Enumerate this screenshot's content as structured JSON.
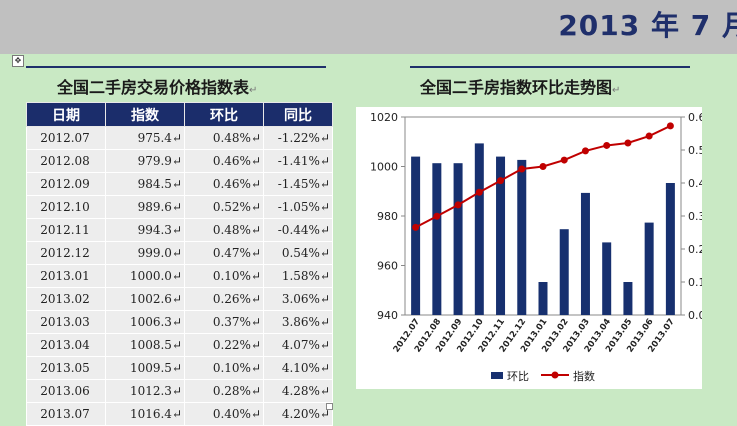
{
  "header": {
    "banner": "2013 年 7 月"
  },
  "table_section": {
    "title": "全国二手房交易价格指数表",
    "columns": [
      "日期",
      "指数",
      "环比",
      "同比"
    ],
    "rows": [
      [
        "2012.07",
        "975.4",
        "0.48%",
        "-1.22%"
      ],
      [
        "2012.08",
        "979.9",
        "0.46%",
        "-1.41%"
      ],
      [
        "2012.09",
        "984.5",
        "0.46%",
        "-1.45%"
      ],
      [
        "2012.10",
        "989.6",
        "0.52%",
        "-1.05%"
      ],
      [
        "2012.11",
        "994.3",
        "0.48%",
        "-0.44%"
      ],
      [
        "2012.12",
        "999.0",
        "0.47%",
        "0.54%"
      ],
      [
        "2013.01",
        "1000.0",
        "0.10%",
        "1.58%"
      ],
      [
        "2013.02",
        "1002.6",
        "0.26%",
        "3.06%"
      ],
      [
        "2013.03",
        "1006.3",
        "0.37%",
        "3.86%"
      ],
      [
        "2013.04",
        "1008.5",
        "0.22%",
        "4.07%"
      ],
      [
        "2013.05",
        "1009.5",
        "0.10%",
        "4.10%"
      ],
      [
        "2013.06",
        "1012.3",
        "0.28%",
        "4.28%"
      ],
      [
        "2013.07",
        "1016.4",
        "0.40%",
        "4.20%"
      ]
    ]
  },
  "chart_section": {
    "title": "全国二手房指数环比走势图"
  },
  "colors": {
    "bar": "#17306f",
    "line": "#c00000",
    "header_bg": "#1b2d6b",
    "page_bg": "#c9e9c4"
  },
  "chart_data": {
    "type": "bar",
    "categories": [
      "2012.07",
      "2012.08",
      "2012.09",
      "2012.10",
      "2012.11",
      "2012.12",
      "2013.01",
      "2013.02",
      "2013.03",
      "2013.04",
      "2013.05",
      "2013.06",
      "2013.07"
    ],
    "series": [
      {
        "name": "环比",
        "type": "bar",
        "axis": "right",
        "values": [
          0.48,
          0.46,
          0.46,
          0.52,
          0.48,
          0.47,
          0.1,
          0.26,
          0.37,
          0.22,
          0.1,
          0.28,
          0.4
        ]
      },
      {
        "name": "指数",
        "type": "line",
        "axis": "left",
        "values": [
          975.4,
          979.9,
          984.5,
          989.6,
          994.3,
          999.0,
          1000.0,
          1002.6,
          1006.3,
          1008.5,
          1009.5,
          1012.3,
          1016.4
        ]
      }
    ],
    "y_left": {
      "ylim": [
        940,
        1020
      ],
      "ticks": [
        "940",
        "960",
        "980",
        "1000",
        "1020"
      ]
    },
    "y_right": {
      "ylim": [
        0,
        0.6
      ],
      "ticks": [
        "0.0%",
        "0.1%",
        "0.2%",
        "0.3%",
        "0.4%",
        "0.5%",
        "0.6%"
      ]
    },
    "legend_position": "bottom"
  }
}
